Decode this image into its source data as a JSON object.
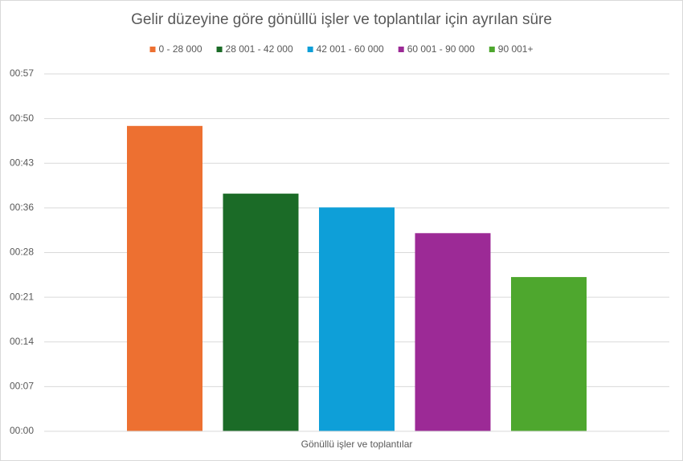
{
  "chart_data": {
    "type": "bar",
    "title": "Gelir düzeyine göre gönüllü işler ve toplantılar için ayrılan süre",
    "categories": [
      "Gönüllü işler ve toplantılar"
    ],
    "series": [
      {
        "name": "0 - 28 000",
        "color": "#ed7031",
        "values": [
          48.7
        ]
      },
      {
        "name": "28 001 - 42 000",
        "color": "#1b6b27",
        "values": [
          37.9
        ]
      },
      {
        "name": "42 001 - 60 000",
        "color": "#0e9fd8",
        "values": [
          35.7
        ]
      },
      {
        "name": "60 001 - 90 000",
        "color": "#9c2a96",
        "values": [
          31.6
        ]
      },
      {
        "name": "90 001+",
        "color": "#4ea72e",
        "values": [
          24.6
        ]
      }
    ],
    "ylim": [
      0,
      57
    ],
    "yticks": [
      {
        "value": 0,
        "label": "00:00"
      },
      {
        "value": 7.125,
        "label": "00:07"
      },
      {
        "value": 14.25,
        "label": "00:14"
      },
      {
        "value": 21.375,
        "label": "00:21"
      },
      {
        "value": 28.5,
        "label": "00:28"
      },
      {
        "value": 35.625,
        "label": "00:36"
      },
      {
        "value": 42.75,
        "label": "00:43"
      },
      {
        "value": 49.875,
        "label": "00:50"
      },
      {
        "value": 57,
        "label": "00:57"
      }
    ],
    "grid": true,
    "legend": "top"
  }
}
